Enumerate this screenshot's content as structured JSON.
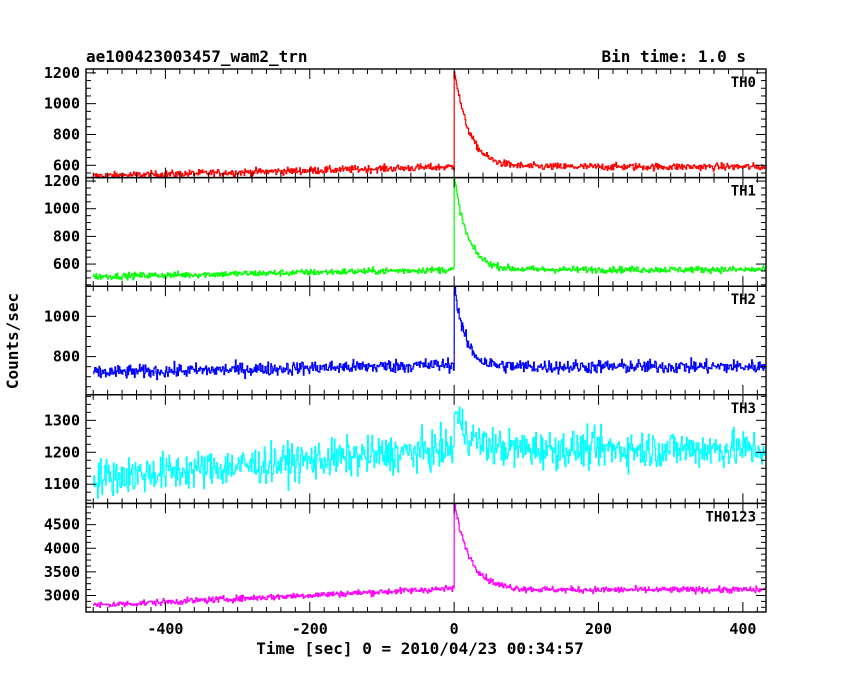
{
  "header": {
    "title": "ae100423003457_wam2_trn",
    "bin_time": "Bin time: 1.0 s"
  },
  "chart_data": {
    "type": "line",
    "xlabel": "Time [sec] 0 = 2010/04/23 00:34:57",
    "ylabel": "Counts/sec",
    "xlim": [
      -510,
      432
    ],
    "x_ticks": [
      -400,
      -200,
      0,
      200,
      400
    ],
    "bin_seconds": 1.0,
    "panels": [
      {
        "name": "TH0",
        "color": "#ff0000",
        "ylim": [
          520,
          1225
        ],
        "yticks": [
          600,
          800,
          1000,
          1200
        ],
        "pre_start": 530,
        "pre_end": 590,
        "peak": 1225,
        "post_level": 590,
        "decay": 20,
        "noise": 17
      },
      {
        "name": "TH1",
        "color": "#00ff00",
        "ylim": [
          440,
          1225
        ],
        "yticks": [
          600,
          800,
          1000,
          1200
        ],
        "pre_start": 510,
        "pre_end": 560,
        "peak": 1225,
        "post_level": 560,
        "decay": 18,
        "noise": 17
      },
      {
        "name": "TH2",
        "color": "#0000ff",
        "ylim": [
          610,
          1150
        ],
        "yticks": [
          800,
          1000
        ],
        "pre_start": 720,
        "pre_end": 760,
        "peak": 1150,
        "post_level": 750,
        "decay": 15,
        "noise": 24
      },
      {
        "name": "TH3",
        "color": "#00ffff",
        "ylim": [
          1040,
          1380
        ],
        "yticks": [
          1100,
          1200,
          1300
        ],
        "pre_start": 1120,
        "pre_end": 1210,
        "peak": 1330,
        "post_level": 1210,
        "decay": 20,
        "noise": 42
      },
      {
        "name": "TH0123",
        "color": "#ff00ff",
        "ylim": [
          2650,
          4950
        ],
        "yticks": [
          3000,
          3500,
          4000,
          4500
        ],
        "pre_start": 2790,
        "pre_end": 3150,
        "peak": 4950,
        "post_level": 3120,
        "decay": 22,
        "noise": 48
      }
    ]
  }
}
